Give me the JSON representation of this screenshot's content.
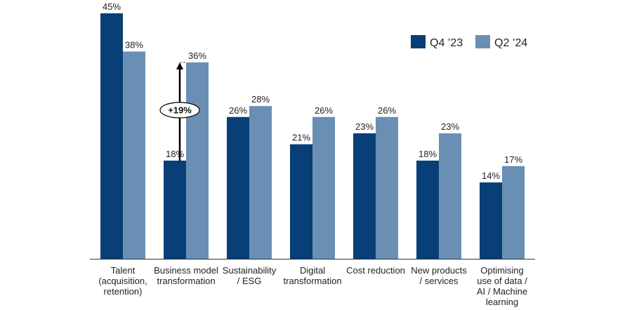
{
  "chart_data": {
    "type": "bar",
    "title": "",
    "xlabel": "",
    "ylabel": "",
    "ylim": [
      0,
      45
    ],
    "grid": false,
    "legend_position": "top-right",
    "categories": [
      [
        "Talent",
        "(acquisition,",
        "retention)"
      ],
      [
        "Business model",
        "transformation"
      ],
      [
        "Sustainability",
        "/ ESG"
      ],
      [
        "Digital",
        "transformation"
      ],
      [
        "Cost reduction"
      ],
      [
        "New products",
        "/ services"
      ],
      [
        "Optimising",
        "use of data /",
        "AI / Machine",
        "learning"
      ]
    ],
    "series": [
      {
        "name": "Q4 ’23",
        "color": "#073f76",
        "values": [
          45,
          18,
          26,
          21,
          23,
          18,
          14
        ],
        "labels": [
          "45%",
          "18%",
          "26%",
          "21%",
          "23%",
          "18%",
          "14%"
        ]
      },
      {
        "name": "Q2 ’24",
        "color": "#6a8fb4",
        "values": [
          38,
          36,
          28,
          26,
          26,
          23,
          17
        ],
        "labels": [
          "38%",
          "36%",
          "28%",
          "26%",
          "26%",
          "23%",
          "17%"
        ]
      }
    ],
    "annotation": {
      "text": "+19%",
      "category_index": 1,
      "from": 18,
      "to": 36
    }
  }
}
